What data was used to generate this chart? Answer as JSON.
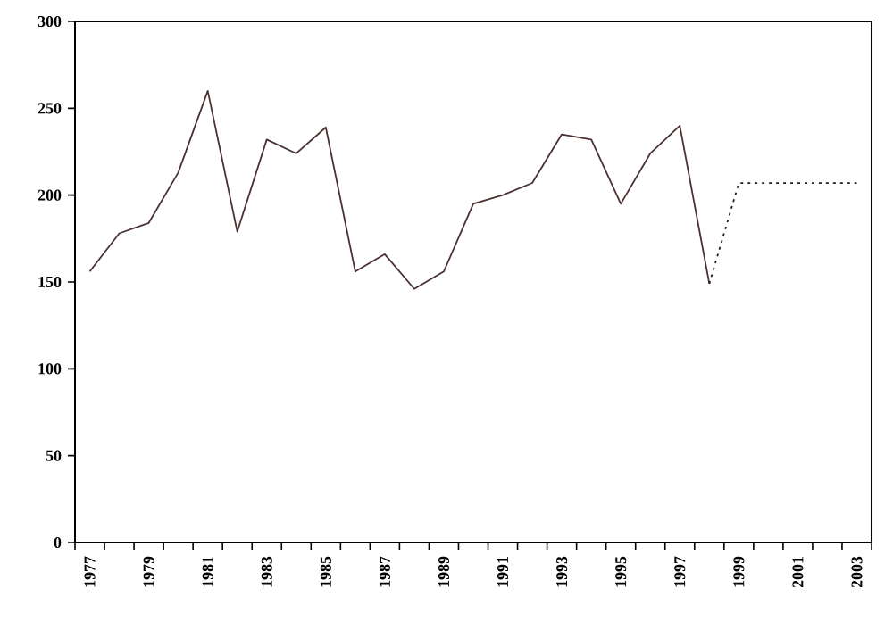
{
  "chart_data": {
    "type": "line",
    "categories": [
      "1977",
      null,
      "1979",
      null,
      "1981",
      null,
      "1983",
      null,
      "1985",
      null,
      "1987",
      null,
      "1989",
      null,
      "1991",
      null,
      "1993",
      null,
      "1995",
      null,
      "1997",
      null,
      "1999",
      null,
      "2001",
      null,
      "2003"
    ],
    "series": [
      {
        "color": "#4a3232",
        "line_style": "solid",
        "values": [
          156,
          178,
          184,
          213,
          260,
          179,
          232,
          224,
          239,
          156,
          166,
          146,
          156,
          195,
          200,
          207,
          235,
          232,
          195,
          224,
          240,
          149,
          null,
          null,
          null,
          null,
          null
        ]
      },
      {
        "color": "#2a1a1a",
        "line_style": "dotted",
        "values": [
          null,
          null,
          null,
          null,
          null,
          null,
          null,
          null,
          null,
          null,
          null,
          null,
          null,
          null,
          null,
          null,
          null,
          null,
          null,
          null,
          null,
          149,
          207,
          207,
          207,
          207,
          207
        ]
      }
    ],
    "ylim": [
      0,
      300
    ],
    "yticks": [
      0,
      50,
      100,
      150,
      200,
      250,
      300
    ],
    "grid": false,
    "marker": "none"
  }
}
